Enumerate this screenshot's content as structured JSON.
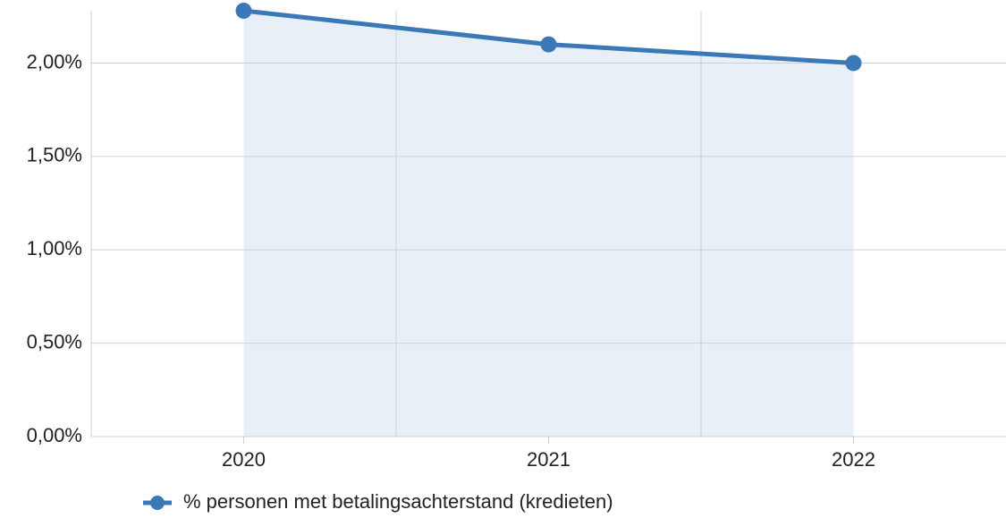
{
  "chart_data": {
    "type": "line",
    "categories": [
      "2020",
      "2021",
      "2022"
    ],
    "series": [
      {
        "name": "% personen met betalingsachterstand (kredieten)",
        "color": "#3a78b8",
        "values": [
          2.28,
          2.1,
          2.0
        ]
      }
    ],
    "ylim": [
      0,
      2.28
    ],
    "yticks": [
      {
        "value": 0,
        "label": "0,00%"
      },
      {
        "value": 0.5,
        "label": "0,50%"
      },
      {
        "value": 1,
        "label": "1,00%"
      },
      {
        "value": 1.5,
        "label": "1,50%"
      },
      {
        "value": 2,
        "label": "2,00%"
      }
    ],
    "grid": true,
    "area": true,
    "legend": "bottom"
  }
}
